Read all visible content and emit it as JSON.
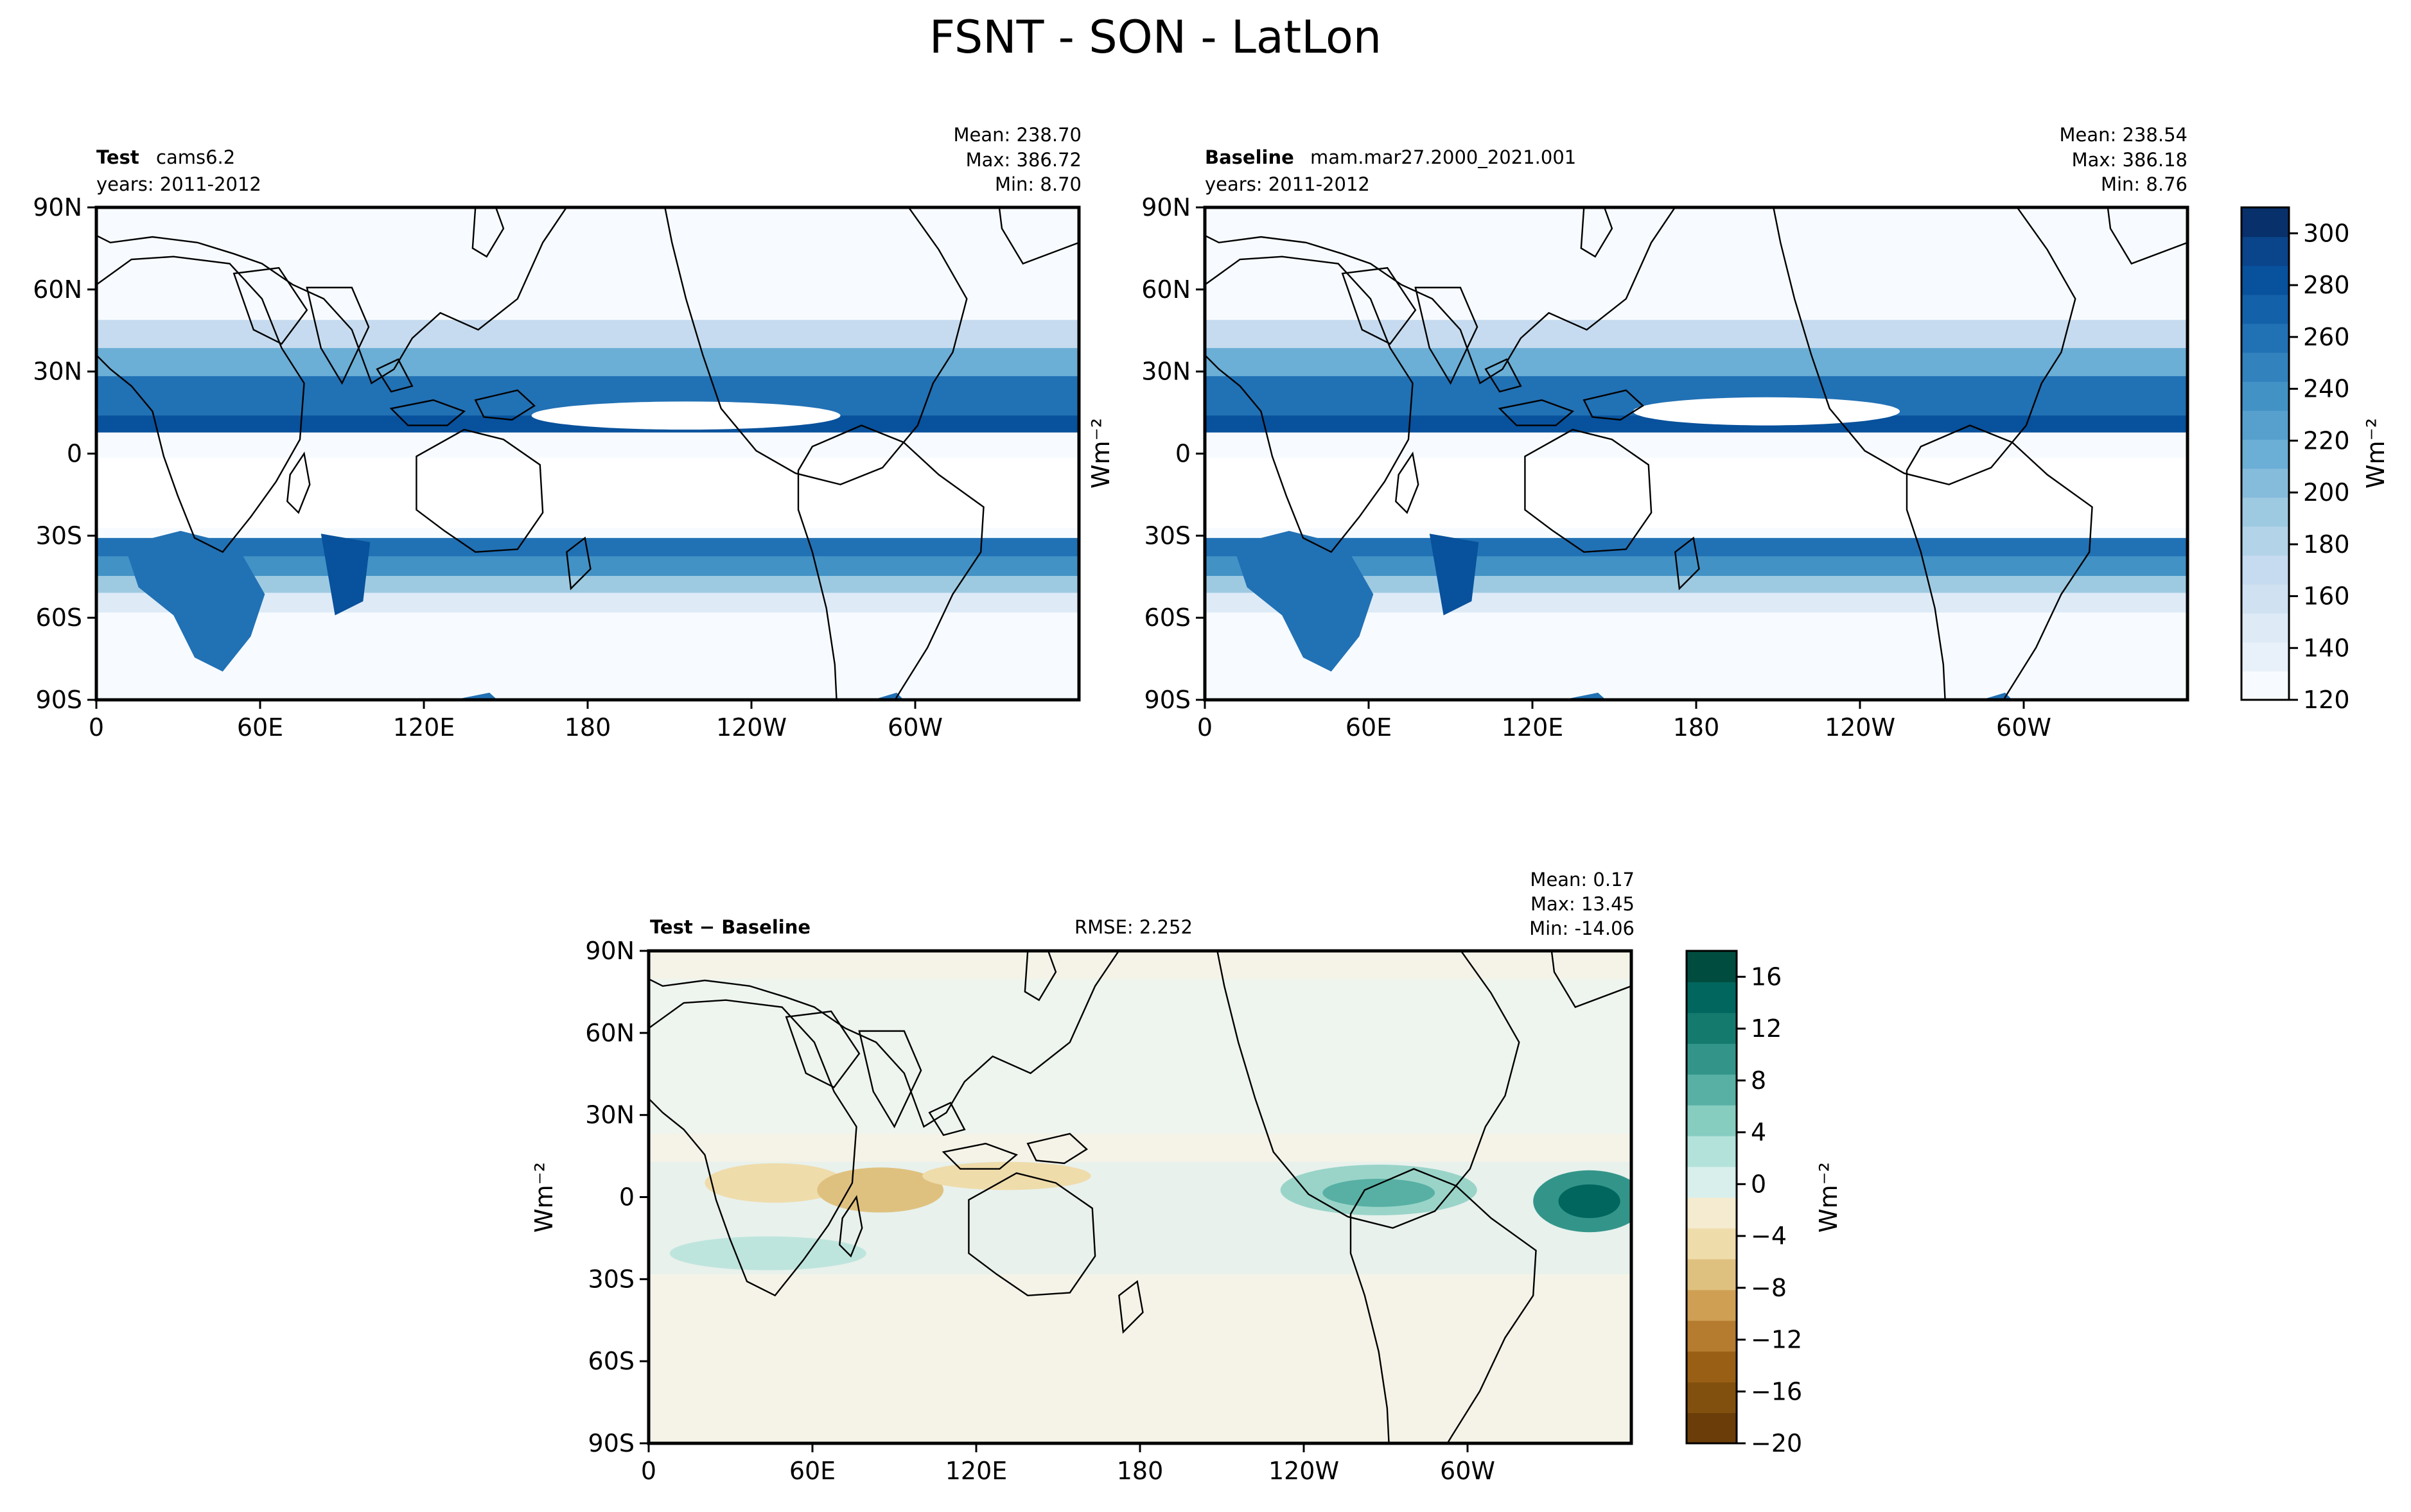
{
  "figure": {
    "title": "FSNT - SON - LatLon"
  },
  "chart_data": [
    {
      "type": "heatmap",
      "panel": "test",
      "label_bold": "Test",
      "label_text": "cams6.2",
      "years": "years: 2011-2012",
      "stats": {
        "mean": "Mean: 238.70",
        "max": "Max: 386.72",
        "min": "Min:  8.70"
      },
      "x_ticks": [
        "0",
        "60E",
        "120E",
        "180",
        "120W",
        "60W"
      ],
      "y_ticks": [
        "90N",
        "60N",
        "30N",
        "0",
        "30S",
        "60S",
        "90S"
      ],
      "ylabel": "",
      "colormap": "Blues",
      "clim": [
        120,
        310
      ]
    },
    {
      "type": "heatmap",
      "panel": "baseline",
      "label_bold": "Baseline",
      "label_text": "mam.mar27.2000_2021.001",
      "years": "years: 2011-2012",
      "stats": {
        "mean": "Mean: 238.54",
        "max": "Max: 386.18",
        "min": "Min:  8.76"
      },
      "x_ticks": [
        "0",
        "60E",
        "120E",
        "180",
        "120W",
        "60W"
      ],
      "y_ticks": [
        "90N",
        "60N",
        "30N",
        "0",
        "30S",
        "60S",
        "90S"
      ],
      "ylabel": "Wm⁻²",
      "colormap": "Blues",
      "clim": [
        120,
        310
      ],
      "colorbar": {
        "ticks": [
          "120",
          "140",
          "160",
          "180",
          "200",
          "220",
          "240",
          "260",
          "280",
          "300"
        ],
        "label": "Wm⁻²"
      }
    },
    {
      "type": "heatmap",
      "panel": "difference",
      "label_bold": "Test − Baseline",
      "rmse": "RMSE: 2.252",
      "stats": {
        "mean": "Mean:  0.17",
        "max": "Max: 13.45",
        "min": "Min: -14.06"
      },
      "x_ticks": [
        "0",
        "60E",
        "120E",
        "180",
        "120W",
        "60W"
      ],
      "y_ticks": [
        "90N",
        "60N",
        "30N",
        "0",
        "30S",
        "60S",
        "90S"
      ],
      "ylabel": "Wm⁻²",
      "colormap": "BrBG",
      "clim": [
        -20,
        18
      ],
      "colorbar": {
        "ticks": [
          "−20",
          "−16",
          "−12",
          "−8",
          "−4",
          "0",
          "4",
          "8",
          "12",
          "16"
        ],
        "label": "Wm⁻²"
      }
    }
  ],
  "colors": {
    "blues": [
      "#f7fbff",
      "#e8f1fa",
      "#deebf7",
      "#d0e2f2",
      "#c6dbef",
      "#b3d3e8",
      "#9ecae1",
      "#85bcdc",
      "#6baed6",
      "#57a0ce",
      "#4292c6",
      "#3282be",
      "#2171b5",
      "#1361a9",
      "#08519c",
      "#0a448a",
      "#08306b"
    ],
    "brbg_neg": [
      "#6a3d09",
      "#82500e",
      "#995f15",
      "#b57b2e",
      "#cfa054",
      "#dfc17f",
      "#efdcab",
      "#f5ebd0"
    ],
    "brbg_pos": [
      "#d8efec",
      "#b3e2da",
      "#86cdc0",
      "#58b0a4",
      "#33958a",
      "#147a6e",
      "#01665e",
      "#004d40"
    ],
    "land_line": "#000000",
    "diff_background": "#f5f3e7"
  }
}
